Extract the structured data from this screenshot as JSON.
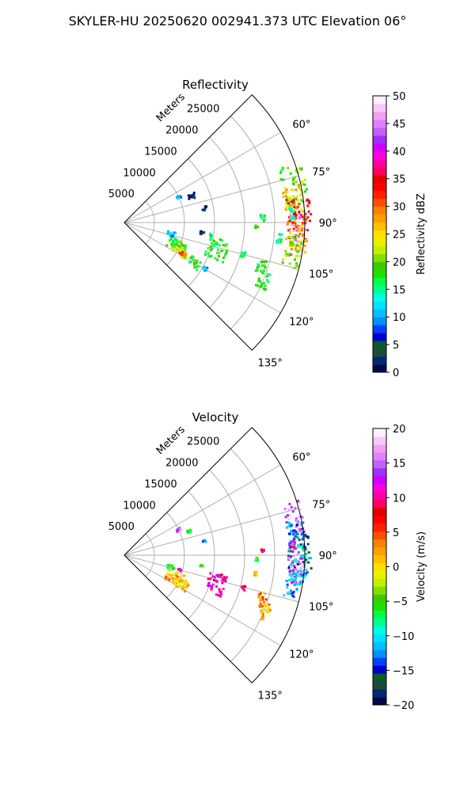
{
  "figure": {
    "title": "SKYLER-HU  20250620  002941.373 UTC Elevation 06°"
  },
  "chart_data": [
    {
      "type": "polar-sector",
      "title": "Reflectivity",
      "range_label": "Meters",
      "range_ticks": [
        "5000",
        "10000",
        "15000",
        "20000",
        "25000"
      ],
      "range_values": [
        5000,
        10000,
        15000,
        20000,
        25000
      ],
      "azimuth_ticks": [
        "60°",
        "75°",
        "90°",
        "105°",
        "120°",
        "135°"
      ],
      "azimuth_values": [
        60,
        75,
        90,
        105,
        120,
        135
      ],
      "azimuth_range": [
        45,
        135
      ],
      "max_range": 30000,
      "grid": true,
      "colorbar": {
        "label": "Reflectivity dBZ",
        "min": 0,
        "max": 50,
        "ticks": [
          "0",
          "5",
          "10",
          "15",
          "20",
          "25",
          "30",
          "35",
          "40",
          "45",
          "50"
        ],
        "tick_values": [
          0,
          5,
          10,
          15,
          20,
          25,
          30,
          35,
          40,
          45,
          50
        ],
        "colors": [
          "#000a4a",
          "#002a72",
          "#1f4a3a",
          "#0a5a2a",
          "#0000c8",
          "#0040ff",
          "#0090ff",
          "#00c0ff",
          "#00e0ff",
          "#00ffe0",
          "#00ff90",
          "#00ff40",
          "#20e000",
          "#40c800",
          "#80e000",
          "#c0f000",
          "#e8f000",
          "#ffe000",
          "#ffc000",
          "#ffa000",
          "#ff8000",
          "#ff5000",
          "#ff2000",
          "#ff0000",
          "#e00000",
          "#ff0060",
          "#ff00a0",
          "#ff00e0",
          "#d000ff",
          "#a030ff",
          "#c060ff",
          "#e080ff",
          "#f0a0f0",
          "#f8c8f8",
          "#fff0ff"
        ]
      },
      "echoes": [
        {
          "az": 65,
          "r": 10000,
          "v": 11,
          "spread": 3
        },
        {
          "az": 69,
          "r": 12000,
          "v": 3,
          "spread": 5
        },
        {
          "az": 80,
          "r": 13500,
          "v": 2,
          "spread": 3
        },
        {
          "az": 98,
          "r": 13000,
          "v": 3,
          "spread": 3
        },
        {
          "az": 104,
          "r": 8000,
          "v": 11,
          "spread": 6
        },
        {
          "az": 113,
          "r": 9500,
          "v": 18,
          "spread": 12
        },
        {
          "az": 117,
          "r": 10500,
          "v": 22,
          "spread": 10
        },
        {
          "az": 118,
          "r": 11000,
          "v": 30,
          "spread": 4
        },
        {
          "az": 106,
          "r": 16000,
          "v": 18,
          "spread": 14
        },
        {
          "az": 120,
          "r": 13500,
          "v": 18,
          "spread": 8
        },
        {
          "az": 120,
          "r": 15500,
          "v": 11,
          "spread": 3
        },
        {
          "az": 105,
          "r": 20500,
          "v": 16,
          "spread": 3
        },
        {
          "az": 98,
          "r": 14500,
          "v": 15,
          "spread": 2
        },
        {
          "az": 88,
          "r": 23000,
          "v": 16,
          "spread": 3
        },
        {
          "az": 92,
          "r": 22000,
          "v": 17,
          "spread": 2
        },
        {
          "az": 108,
          "r": 24000,
          "v": 18,
          "spread": 6
        },
        {
          "az": 112,
          "r": 25000,
          "v": 17,
          "spread": 8
        },
        {
          "az": 96,
          "r": 26000,
          "v": 15,
          "spread": 4
        },
        {
          "az": 78,
          "r": 29000,
          "v": 20,
          "spread": 16
        },
        {
          "az": 84,
          "r": 28500,
          "v": 26,
          "spread": 14
        },
        {
          "az": 89,
          "r": 29200,
          "v": 34,
          "spread": 16
        },
        {
          "az": 92,
          "r": 29000,
          "v": 45,
          "spread": 10
        },
        {
          "az": 95,
          "r": 28800,
          "v": 28,
          "spread": 14
        },
        {
          "az": 100,
          "r": 28500,
          "v": 20,
          "spread": 12
        },
        {
          "az": 87,
          "r": 28000,
          "v": 15,
          "spread": 4
        }
      ]
    },
    {
      "type": "polar-sector",
      "title": "Velocity",
      "range_label": "Meters",
      "range_ticks": [
        "5000",
        "10000",
        "15000",
        "20000",
        "25000"
      ],
      "range_values": [
        5000,
        10000,
        15000,
        20000,
        25000
      ],
      "azimuth_ticks": [
        "60°",
        "75°",
        "90°",
        "105°",
        "120°",
        "135°"
      ],
      "azimuth_values": [
        60,
        75,
        90,
        105,
        120,
        135
      ],
      "azimuth_range": [
        45,
        135
      ],
      "max_range": 30000,
      "grid": true,
      "colorbar": {
        "label": "Velocity (m/s)",
        "min": -20,
        "max": 20,
        "ticks": [
          "−20",
          "−15",
          "−10",
          "−5",
          "0",
          "5",
          "10",
          "15",
          "20"
        ],
        "tick_values": [
          -20,
          -15,
          -10,
          -5,
          0,
          5,
          10,
          15,
          20
        ],
        "colors": [
          "#000a4a",
          "#002a72",
          "#1f4a3a",
          "#0a5a2a",
          "#0000c8",
          "#0040ff",
          "#0090ff",
          "#00c0ff",
          "#00e0ff",
          "#00ffe0",
          "#00ff90",
          "#00ff40",
          "#20e000",
          "#40c800",
          "#80e000",
          "#c0f000",
          "#e8f000",
          "#ffe000",
          "#ffc000",
          "#ffa000",
          "#ff8000",
          "#ff5000",
          "#ff2000",
          "#ff0000",
          "#e00000",
          "#ff0060",
          "#ff00a0",
          "#ff00e0",
          "#d000ff",
          "#a030ff",
          "#c060ff",
          "#e080ff",
          "#f0a0f0",
          "#f8c8f8",
          "#fff0ff"
        ]
      },
      "echoes": [
        {
          "az": 65,
          "r": 10000,
          "v": 16,
          "spread": 3
        },
        {
          "az": 70,
          "r": 11500,
          "v": -6,
          "spread": 3
        },
        {
          "az": 80,
          "r": 13500,
          "v": -12,
          "spread": 2
        },
        {
          "az": 98,
          "r": 13000,
          "v": -4,
          "spread": 2
        },
        {
          "az": 104,
          "r": 8000,
          "v": -6,
          "spread": 5
        },
        {
          "az": 105,
          "r": 9500,
          "v": 11,
          "spread": 2
        },
        {
          "az": 114,
          "r": 9500,
          "v": 2,
          "spread": 14
        },
        {
          "az": 117,
          "r": 10500,
          "v": 1,
          "spread": 10
        },
        {
          "az": 106,
          "r": 16000,
          "v": 11,
          "spread": 12
        },
        {
          "az": 112,
          "r": 17000,
          "v": 9,
          "spread": 3
        },
        {
          "az": 105,
          "r": 20500,
          "v": 10,
          "spread": 3
        },
        {
          "az": 98,
          "r": 22000,
          "v": 2,
          "spread": 2
        },
        {
          "az": 88,
          "r": 23000,
          "v": 11,
          "spread": 2
        },
        {
          "az": 92,
          "r": 22000,
          "v": -6,
          "spread": 2
        },
        {
          "az": 108,
          "r": 24000,
          "v": 3,
          "spread": 6
        },
        {
          "az": 112,
          "r": 25000,
          "v": 2,
          "spread": 8
        },
        {
          "az": 78,
          "r": 29000,
          "v": 16,
          "spread": 12
        },
        {
          "az": 84,
          "r": 28800,
          "v": -12,
          "spread": 12
        },
        {
          "az": 89,
          "r": 29200,
          "v": -14,
          "spread": 16
        },
        {
          "az": 92,
          "r": 29000,
          "v": -10,
          "spread": 12
        },
        {
          "az": 95,
          "r": 28800,
          "v": 15,
          "spread": 12
        },
        {
          "az": 100,
          "r": 28500,
          "v": -12,
          "spread": 10
        },
        {
          "az": 87,
          "r": 28000,
          "v": 11,
          "spread": 4
        }
      ]
    }
  ]
}
